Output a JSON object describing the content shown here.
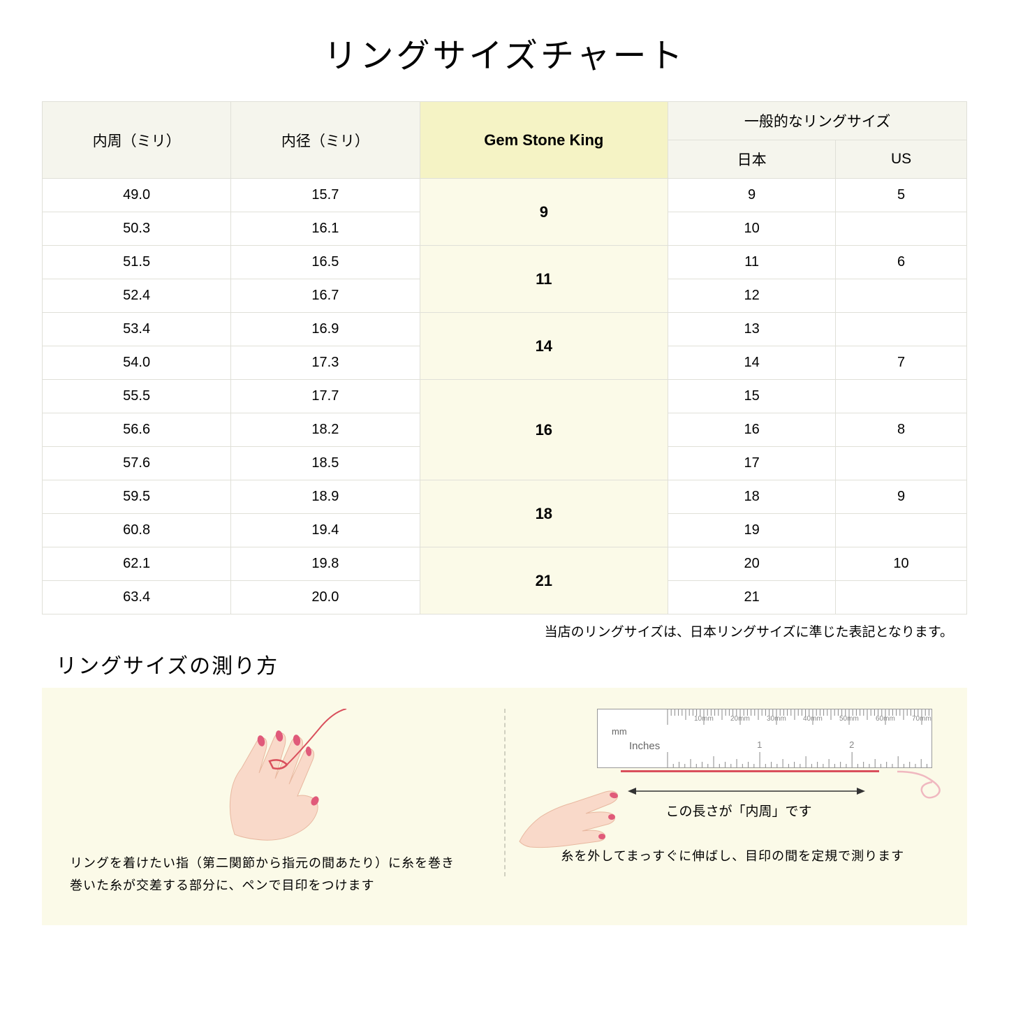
{
  "title": "リングサイズチャート",
  "table": {
    "headers": {
      "col1": "内周（ミリ）",
      "col2": "内径（ミリ）",
      "col3": "Gem Stone King",
      "col4_group": "一般的なリングサイズ",
      "col4a": "日本",
      "col4b": "US"
    },
    "rows": [
      {
        "c1": "49.0",
        "c2": "15.7",
        "gsk": "9",
        "gsk_span": 2,
        "jp": "9",
        "us": "5"
      },
      {
        "c1": "50.3",
        "c2": "16.1",
        "jp": "10",
        "us": ""
      },
      {
        "c1": "51.5",
        "c2": "16.5",
        "gsk": "11",
        "gsk_span": 2,
        "jp": "11",
        "us": "6"
      },
      {
        "c1": "52.4",
        "c2": "16.7",
        "jp": "12",
        "us": ""
      },
      {
        "c1": "53.4",
        "c2": "16.9",
        "gsk": "14",
        "gsk_span": 2,
        "jp": "13",
        "us": ""
      },
      {
        "c1": "54.0",
        "c2": "17.3",
        "jp": "14",
        "us": "7"
      },
      {
        "c1": "55.5",
        "c2": "17.7",
        "gsk": "16",
        "gsk_span": 3,
        "jp": "15",
        "us": ""
      },
      {
        "c1": "56.6",
        "c2": "18.2",
        "jp": "16",
        "us": "8"
      },
      {
        "c1": "57.6",
        "c2": "18.5",
        "jp": "17",
        "us": ""
      },
      {
        "c1": "59.5",
        "c2": "18.9",
        "gsk": "18",
        "gsk_span": 2,
        "jp": "18",
        "us": "9"
      },
      {
        "c1": "60.8",
        "c2": "19.4",
        "jp": "19",
        "us": ""
      },
      {
        "c1": "62.1",
        "c2": "19.8",
        "gsk": "21",
        "gsk_span": 2,
        "jp": "20",
        "us": "10"
      },
      {
        "c1": "63.4",
        "c2": "20.0",
        "jp": "21",
        "us": ""
      }
    ]
  },
  "note": "当店のリングサイズは、日本リングサイズに準じた表記となります。",
  "subtitle": "リングサイズの測り方",
  "instruction1": "リングを着けたい指（第二関節から指元の間あたり）に糸を巻き\n巻いた糸が交差する部分に、ペンで目印をつけます",
  "instruction2": "糸を外してまっすぐに伸ばし、目印の間を定規で測ります",
  "ruler": {
    "mm_label": "mm",
    "inches_label": "Inches",
    "mm_ticks": [
      "10mm",
      "20mm",
      "30mm",
      "40mm",
      "50mm",
      "60mm",
      "70mm"
    ],
    "in_ticks": [
      "1",
      "2"
    ]
  },
  "length_label": "この長さが「内周」です",
  "colors": {
    "header_bg": "#f5f5ed",
    "highlight_header_bg": "#f5f3c5",
    "highlight_cell_bg": "#fbfae8",
    "border": "#e0e0d8",
    "skin": "#f9d9c9",
    "nail": "#e05a7a",
    "thread": "#d94f5c",
    "instruction_bg": "#fbfae8"
  }
}
